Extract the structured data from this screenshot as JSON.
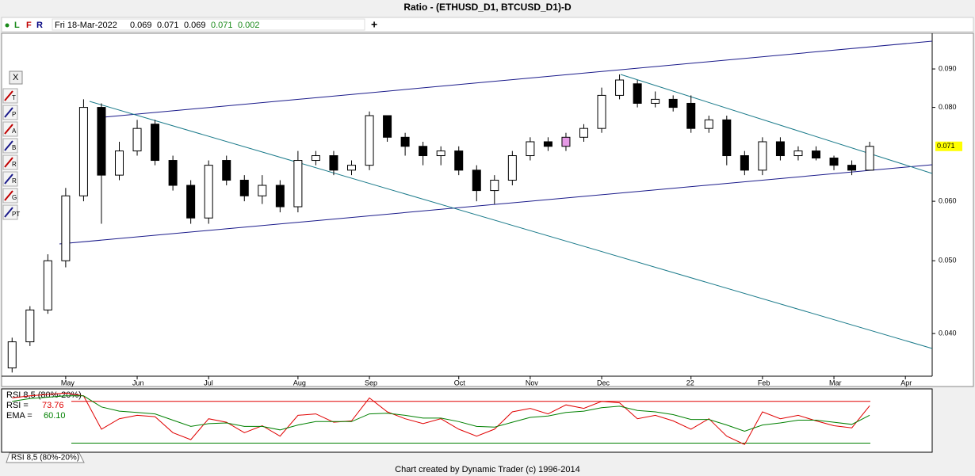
{
  "window_title": "Ratio - (ETHUSD_D1, BTCUSD_D1)-D",
  "info_bar": {
    "modes": [
      "L",
      "F",
      "R"
    ],
    "date": "Fri 18-Mar-2022",
    "fields": [
      "0.069",
      "0.071",
      "0.069",
      "0.071",
      "0.002"
    ]
  },
  "toolbar": [
    "T",
    "P",
    "A",
    "B",
    "R",
    "R",
    "G",
    "PT"
  ],
  "footer": "Chart created by Dynamic Trader  (c) 1996-2014",
  "chart_data": [
    {
      "type": "candlestick",
      "log": true,
      "ylim": [
        0.0351,
        0.1004
      ],
      "yticks": [
        {
          "value": 0.04,
          "label": "0.040"
        },
        {
          "value": 0.05,
          "label": "0.050"
        },
        {
          "value": 0.06,
          "label": "0.060"
        },
        {
          "value": 0.08,
          "label": "0.080"
        },
        {
          "value": 0.09,
          "label": "0.090"
        }
      ],
      "last_value": {
        "value": 0.071,
        "label": "0.071",
        "color": "#ffff00"
      },
      "up_color": "#ffffff",
      "down_color": "#000000",
      "highlight": {
        "index": 31,
        "color": "#e69ae6"
      },
      "categories": [
        null,
        null,
        null,
        "May",
        null,
        null,
        null,
        "Jun",
        null,
        null,
        null,
        "Jul",
        null,
        null,
        null,
        null,
        "Aug",
        null,
        null,
        null,
        "Sep",
        null,
        null,
        null,
        null,
        "Oct",
        null,
        null,
        null,
        "Nov",
        null,
        null,
        null,
        "Dec",
        null,
        null,
        null,
        null,
        "22",
        null,
        null,
        null,
        "Feb",
        null,
        null,
        null,
        "Mar",
        null,
        null,
        null,
        "Apr",
        null
      ],
      "open": [
        0.036,
        0.039,
        0.043,
        0.05,
        0.061,
        0.08,
        0.065,
        0.07,
        0.076,
        0.068,
        0.063,
        0.057,
        0.068,
        0.064,
        0.061,
        0.063,
        0.059,
        0.068,
        0.069,
        0.066,
        0.067,
        0.078,
        0.073,
        0.071,
        0.069,
        0.07,
        0.066,
        0.062,
        0.064,
        0.069,
        0.072,
        0.071,
        0.073,
        0.075,
        0.083,
        0.086,
        0.081,
        0.082,
        0.081,
        0.075,
        0.077,
        0.069,
        0.066,
        0.072,
        0.069,
        0.07,
        0.0685,
        0.067,
        0.066,
        null,
        null,
        null
      ],
      "high": [
        0.0395,
        0.0435,
        0.051,
        0.0625,
        0.082,
        0.081,
        0.072,
        0.077,
        0.077,
        0.069,
        0.064,
        0.068,
        0.069,
        0.065,
        0.065,
        0.064,
        0.07,
        0.07,
        0.07,
        0.068,
        0.079,
        0.078,
        0.074,
        0.072,
        0.071,
        0.071,
        0.067,
        0.065,
        0.07,
        0.073,
        0.073,
        0.074,
        0.076,
        0.085,
        0.0885,
        0.087,
        0.084,
        0.083,
        0.083,
        0.078,
        0.078,
        0.07,
        0.073,
        0.073,
        0.071,
        0.071,
        0.069,
        0.068,
        0.072,
        null,
        null,
        null
      ],
      "low": [
        0.0355,
        0.0385,
        0.0425,
        0.049,
        0.06,
        0.056,
        0.064,
        0.069,
        0.067,
        0.062,
        0.056,
        0.056,
        0.063,
        0.06,
        0.0595,
        0.058,
        0.058,
        0.067,
        0.065,
        0.065,
        0.066,
        0.072,
        0.069,
        0.067,
        0.067,
        0.065,
        0.06,
        0.0595,
        0.063,
        0.068,
        0.07,
        0.07,
        0.072,
        0.074,
        0.082,
        0.08,
        0.08,
        0.079,
        0.074,
        0.074,
        0.067,
        0.065,
        0.065,
        0.068,
        0.068,
        0.068,
        0.066,
        0.065,
        0.066,
        null,
        null,
        null
      ],
      "close": [
        0.039,
        0.043,
        0.05,
        0.061,
        0.08,
        0.065,
        0.07,
        0.075,
        0.068,
        0.063,
        0.057,
        0.067,
        0.064,
        0.061,
        0.063,
        0.059,
        0.068,
        0.069,
        0.066,
        0.067,
        0.078,
        0.073,
        0.071,
        0.069,
        0.07,
        0.066,
        0.062,
        0.064,
        0.069,
        0.072,
        0.071,
        0.073,
        0.075,
        0.083,
        0.087,
        0.081,
        0.082,
        0.08,
        0.075,
        0.077,
        0.069,
        0.066,
        0.072,
        0.069,
        0.07,
        0.0685,
        0.067,
        0.066,
        0.071,
        null,
        null,
        null
      ]
    },
    {
      "type": "line",
      "title": "RSI 8,5 (80%-20%)",
      "ylim": [
        8,
        98
      ],
      "levels": [
        {
          "value": 80,
          "color": "#e00000"
        },
        {
          "value": 20,
          "color": "#008000"
        }
      ],
      "series": [
        {
          "name": "RSI =",
          "color": "#e00000",
          "values": [
            85,
            88,
            90,
            92,
            88,
            40,
            55,
            60,
            58,
            35,
            25,
            55,
            50,
            35,
            45,
            30,
            60,
            62,
            50,
            52,
            85,
            65,
            55,
            48,
            55,
            40,
            30,
            40,
            65,
            70,
            62,
            75,
            70,
            80,
            78,
            55,
            60,
            52,
            40,
            55,
            30,
            18,
            65,
            55,
            60,
            52,
            45,
            42,
            73.76,
            null,
            null,
            null
          ]
        },
        {
          "name": "EMA =",
          "color": "#008000",
          "values": [
            80,
            84,
            86,
            88,
            88,
            72,
            66,
            64,
            62,
            53,
            44,
            48,
            49,
            44,
            44,
            39,
            46,
            51,
            51,
            51,
            62,
            63,
            60,
            56,
            56,
            51,
            44,
            43,
            50,
            57,
            59,
            64,
            66,
            71,
            73,
            67,
            65,
            61,
            54,
            54,
            46,
            37,
            46,
            49,
            53,
            53,
            50,
            47,
            60.1,
            null,
            null,
            null
          ],
          "value_labels": [
            null,
            null,
            null,
            null,
            null,
            null,
            null,
            null,
            null,
            null,
            null,
            null,
            null,
            null,
            null,
            null,
            null,
            null,
            null,
            null,
            null,
            null,
            null,
            null,
            null,
            null,
            null,
            null,
            null,
            null,
            null,
            null,
            null,
            null,
            null,
            null,
            null,
            null,
            null,
            null,
            null,
            null,
            null,
            null,
            null,
            null,
            null,
            null,
            "60.10",
            null,
            null,
            null
          ]
        }
      ]
    }
  ]
}
